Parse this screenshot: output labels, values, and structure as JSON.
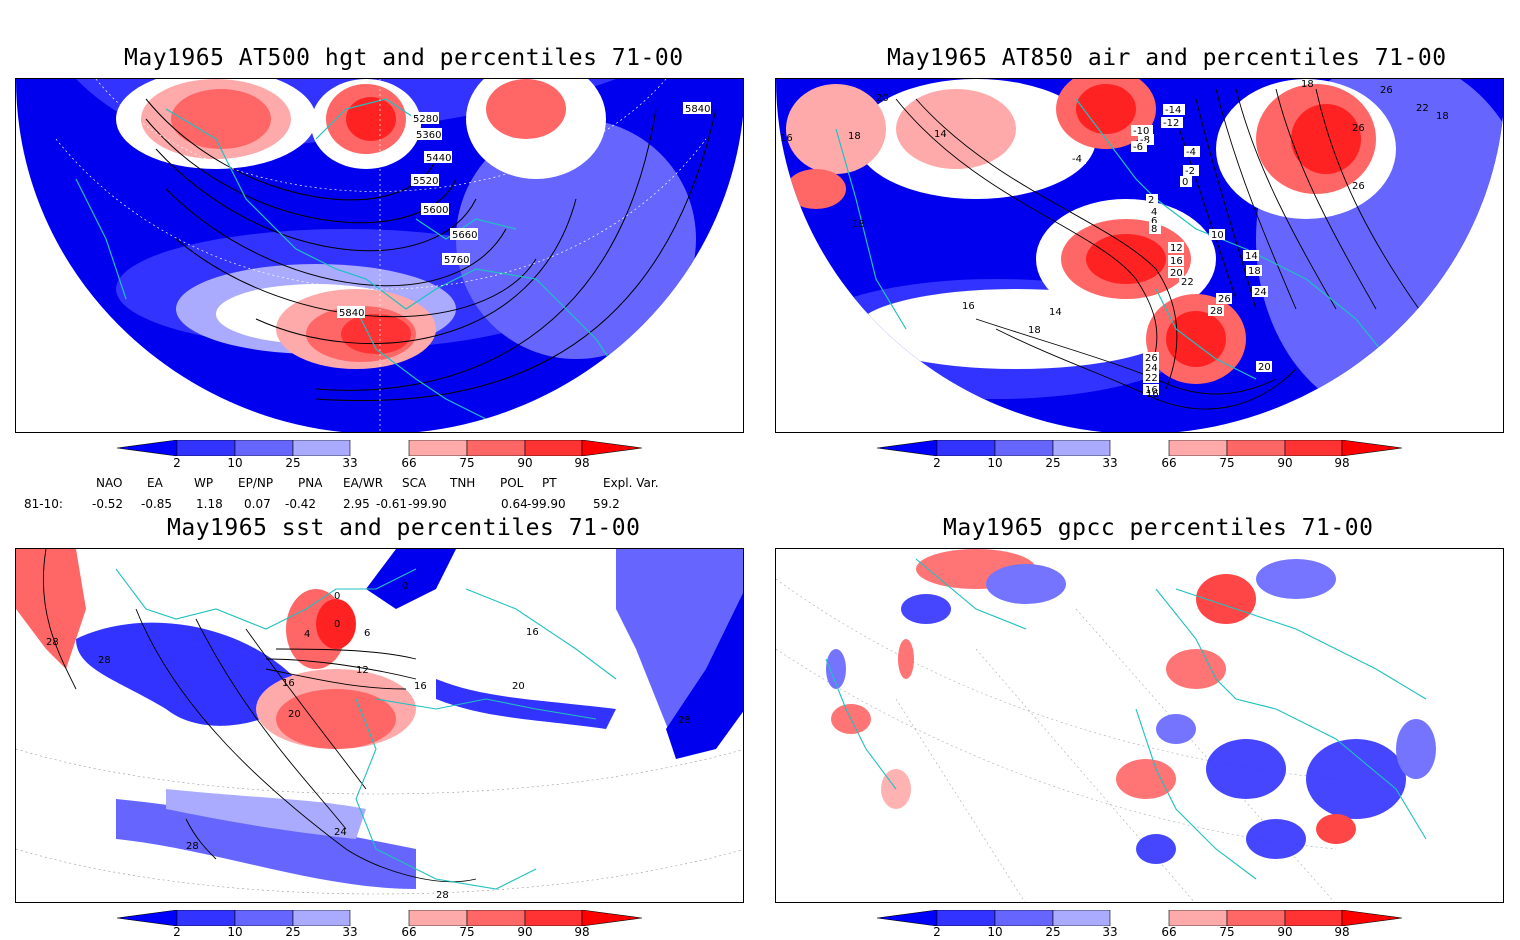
{
  "panels": [
    {
      "id": "hgt",
      "title": "May1965 AT500 hgt and percentiles 71-00",
      "contour_labels": [
        "5280",
        "5360",
        "5440",
        "5520",
        "5600",
        "5660",
        "5760",
        "5840",
        "5840"
      ]
    },
    {
      "id": "air",
      "title": "May1965 AT850 air and percentiles 71-00",
      "contour_labels": [
        "16",
        "20",
        "14",
        "18",
        "18",
        "18",
        "-14",
        "-12",
        "-10",
        "-8",
        "-6",
        "-4",
        "-2",
        "0",
        "2",
        "4",
        "6",
        "8",
        "10",
        "12",
        "14",
        "16",
        "18",
        "20",
        "22",
        "24",
        "26",
        "28",
        "26",
        "24",
        "22",
        "16",
        "20",
        "16",
        "14",
        "18",
        "26",
        "22",
        "26",
        "18"
      ]
    },
    {
      "id": "sst",
      "title": "May1965 sst and percentiles 71-00",
      "contour_labels": [
        "28",
        "28",
        "0",
        "4",
        "0",
        "6",
        "12",
        "16",
        "20",
        "16",
        "18",
        "20",
        "16",
        "28",
        "24",
        "28",
        "28"
      ]
    },
    {
      "id": "gpcc",
      "title": "May1965 gpcc percentiles 71-00",
      "contour_labels": []
    }
  ],
  "colorbar": {
    "labels": [
      "2",
      "10",
      "25",
      "33",
      "66",
      "75",
      "90",
      "98"
    ],
    "colors": {
      "lt2": "#0000ff",
      "c2_10": "#3333ff",
      "c10_25": "#6666ff",
      "c25_33": "#aaaaff",
      "c33_66": "#ffffff",
      "c66_75": "#ffaaaa",
      "c75_90": "#ff6666",
      "c90_98": "#ff3333",
      "gt98": "#ff0000"
    }
  },
  "indices": {
    "headers": [
      "NAO",
      "EA",
      "WP",
      "EP/NP",
      "PNA",
      "EA/WR",
      "SCA",
      "TNH",
      "POL",
      "PT",
      "Expl. Var."
    ],
    "row_label": "81-10:",
    "values": [
      "-0.52",
      "-0.85",
      "1.18",
      "0.07",
      "-0.42",
      "2.95",
      "-0.61",
      "-99.90",
      "0.64",
      "-99.90",
      "59.2"
    ]
  },
  "colors": {
    "coast": "#20c0c0",
    "blue_strong": "#0000ee",
    "red_strong": "#ff2222"
  }
}
